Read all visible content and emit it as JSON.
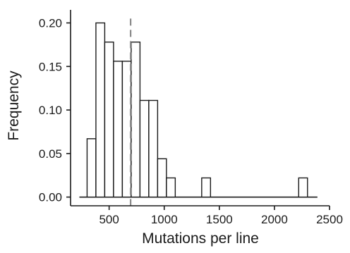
{
  "chart_data": {
    "type": "bar",
    "xlabel": "Mutations per line",
    "ylabel": "Frequency",
    "xlim": [
      150,
      2500
    ],
    "ylim": [
      -0.01,
      0.215
    ],
    "xticks": [
      500,
      1000,
      1500,
      2000,
      2500
    ],
    "xtick_labels": [
      "500",
      "1000",
      "1500",
      "2000",
      "2500"
    ],
    "yticks": [
      0.0,
      0.05,
      0.1,
      0.15,
      0.2
    ],
    "ytick_labels": [
      "0.00",
      "0.05",
      "0.10",
      "0.15",
      "0.20"
    ],
    "bin_width": 80,
    "bins": [
      {
        "start": 300,
        "end": 380,
        "value": 0.067
      },
      {
        "start": 380,
        "end": 460,
        "value": 0.2
      },
      {
        "start": 460,
        "end": 540,
        "value": 0.178
      },
      {
        "start": 540,
        "end": 620,
        "value": 0.156
      },
      {
        "start": 620,
        "end": 700,
        "value": 0.156
      },
      {
        "start": 700,
        "end": 780,
        "value": 0.178
      },
      {
        "start": 780,
        "end": 860,
        "value": 0.111
      },
      {
        "start": 860,
        "end": 940,
        "value": 0.111
      },
      {
        "start": 940,
        "end": 1020,
        "value": 0.044
      },
      {
        "start": 1020,
        "end": 1100,
        "value": 0.022
      },
      {
        "start": 1100,
        "end": 1180,
        "value": 0.0
      },
      {
        "start": 1180,
        "end": 1260,
        "value": 0.0
      },
      {
        "start": 1260,
        "end": 1340,
        "value": 0.0
      },
      {
        "start": 1340,
        "end": 1420,
        "value": 0.022
      },
      {
        "start": 2220,
        "end": 2300,
        "value": 0.022
      }
    ],
    "baseline_range": [
      230,
      2390
    ],
    "reference_line_x": 695,
    "reference_line_style": "dashed gray",
    "grid": false
  }
}
